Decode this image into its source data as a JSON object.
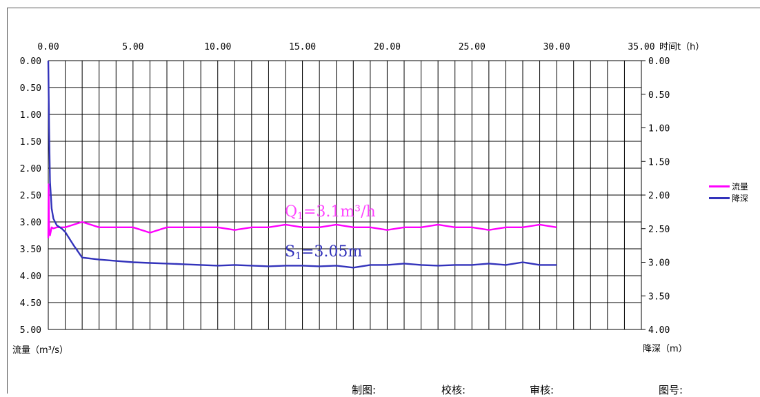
{
  "chart_data": {
    "type": "line",
    "x_ticks": [
      "0.00",
      "5.00",
      "10.00",
      "15.00",
      "20.00",
      "25.00",
      "30.00",
      "35.00"
    ],
    "xlim": [
      0,
      35
    ],
    "x_label": "时间t（h）",
    "left_ticks": [
      "0.00",
      "0.50",
      "1.00",
      "1.50",
      "2.00",
      "2.50",
      "3.00",
      "3.50",
      "4.00",
      "4.50",
      "5.00"
    ],
    "left_ylim": [
      0,
      5
    ],
    "left_label": "流量（m³/s）",
    "right_ticks": [
      "0.00",
      "0.50",
      "1.00",
      "1.50",
      "2.00",
      "2.50",
      "3.00",
      "3.50",
      "4.00"
    ],
    "right_ylim": [
      0,
      4
    ],
    "right_label": "降深（m）",
    "grid": true,
    "legend_position": "right",
    "series": [
      {
        "name": "流量",
        "axis": "left",
        "color": "#ff00ff",
        "x": [
          0,
          0.02,
          0.05,
          0.1,
          0.2,
          0.3,
          0.5,
          1,
          1.5,
          2,
          3,
          4,
          5,
          6,
          7,
          8,
          9,
          10,
          11,
          12,
          13,
          14,
          15,
          16,
          17,
          18,
          19,
          20,
          21,
          22,
          23,
          24,
          25,
          26,
          27,
          28,
          29,
          30
        ],
        "values": [
          3.3,
          2.3,
          3.1,
          3.25,
          3.1,
          3.12,
          3.1,
          3.1,
          3.05,
          3.0,
          3.1,
          3.1,
          3.1,
          3.2,
          3.1,
          3.1,
          3.1,
          3.1,
          3.15,
          3.1,
          3.1,
          3.05,
          3.1,
          3.1,
          3.05,
          3.1,
          3.1,
          3.15,
          3.1,
          3.1,
          3.05,
          3.1,
          3.1,
          3.15,
          3.1,
          3.1,
          3.05,
          3.1
        ]
      },
      {
        "name": "降深",
        "axis": "right",
        "color": "#3333bb",
        "x": [
          0,
          0.05,
          0.1,
          0.2,
          0.3,
          0.5,
          0.8,
          1,
          1.5,
          2,
          3,
          4,
          5,
          6,
          7,
          8,
          9,
          10,
          11,
          12,
          13,
          14,
          15,
          16,
          17,
          18,
          19,
          20,
          21,
          22,
          23,
          24,
          25,
          26,
          27,
          28,
          29,
          30
        ],
        "values": [
          0.0,
          1.0,
          1.8,
          2.2,
          2.35,
          2.45,
          2.5,
          2.55,
          2.75,
          2.93,
          2.96,
          2.98,
          3.0,
          3.01,
          3.02,
          3.03,
          3.04,
          3.05,
          3.04,
          3.05,
          3.06,
          3.05,
          3.05,
          3.06,
          3.05,
          3.08,
          3.04,
          3.04,
          3.02,
          3.04,
          3.05,
          3.04,
          3.04,
          3.02,
          3.04,
          3.0,
          3.04,
          3.04
        ]
      }
    ],
    "annotations": [
      {
        "base": "Q",
        "sub": "1",
        "rest": "=3.1m³/h",
        "color": "#ff44ff"
      },
      {
        "base": "S",
        "sub": "1",
        "rest": "=3.05m",
        "color": "#3333bb"
      }
    ]
  },
  "footer": {
    "drawing": "制图:",
    "check": "校核:",
    "review": "审核:",
    "figure_no": "图号:"
  },
  "legend": [
    {
      "label": "流量",
      "color": "#ff00ff"
    },
    {
      "label": "降深",
      "color": "#3333bb"
    }
  ]
}
